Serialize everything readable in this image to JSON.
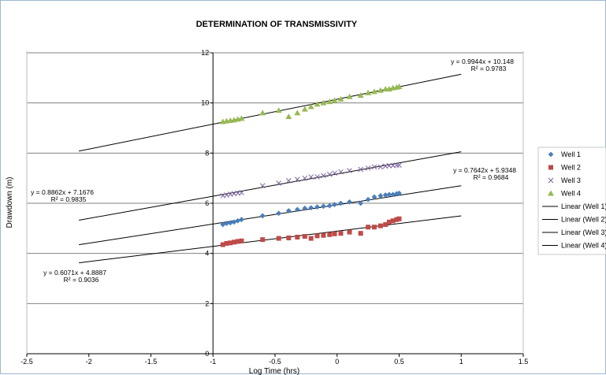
{
  "chart_data": {
    "type": "scatter",
    "title": "DETERMINATION OF TRANSMISSIVITY",
    "xlabel": "Log Time (hrs)",
    "ylabel": "Drawdown (m)",
    "xlim": [
      -2.5,
      1.5
    ],
    "ylim": [
      0,
      12
    ],
    "xticks": [
      "-2.5",
      "-2",
      "-1.5",
      "-1",
      "-0.5",
      "0",
      "0.5",
      "1",
      "1.5"
    ],
    "yticks": [
      "0",
      "2",
      "4",
      "6",
      "8",
      "10",
      "12"
    ],
    "grid": "horizontal",
    "legend_position": "right",
    "series": [
      {
        "name": "Well 1",
        "marker": "diamond",
        "color": "#4a7ebb",
        "x": [
          -0.92,
          -0.89,
          -0.86,
          -0.83,
          -0.8,
          -0.77,
          -0.6,
          -0.47,
          -0.39,
          -0.32,
          -0.26,
          -0.21,
          -0.16,
          -0.11,
          -0.06,
          -0.02,
          0.03,
          0.1,
          0.19,
          0.25,
          0.3,
          0.35,
          0.39,
          0.42,
          0.45,
          0.48,
          0.5
        ],
        "y": [
          5.15,
          5.2,
          5.22,
          5.25,
          5.3,
          5.35,
          5.5,
          5.6,
          5.7,
          5.75,
          5.8,
          5.82,
          5.85,
          5.88,
          5.9,
          5.95,
          6.0,
          6.05,
          6.0,
          6.15,
          6.25,
          6.3,
          6.33,
          6.35,
          6.35,
          6.38,
          6.4
        ]
      },
      {
        "name": "Well 2",
        "marker": "square",
        "color": "#be4b48",
        "x": [
          -0.92,
          -0.89,
          -0.86,
          -0.83,
          -0.8,
          -0.77,
          -0.6,
          -0.47,
          -0.39,
          -0.32,
          -0.26,
          -0.21,
          -0.16,
          -0.11,
          -0.06,
          -0.02,
          0.03,
          0.1,
          0.19,
          0.25,
          0.3,
          0.35,
          0.39,
          0.42,
          0.45,
          0.48,
          0.5
        ],
        "y": [
          4.35,
          4.4,
          4.42,
          4.45,
          4.48,
          4.5,
          4.55,
          4.6,
          4.62,
          4.65,
          4.68,
          4.6,
          4.7,
          4.72,
          4.75,
          4.78,
          4.8,
          4.85,
          4.8,
          5.05,
          5.05,
          5.1,
          5.15,
          5.25,
          5.3,
          5.35,
          5.38
        ]
      },
      {
        "name": "Well 3",
        "marker": "x",
        "color": "#7e64a0",
        "x": [
          -0.92,
          -0.89,
          -0.86,
          -0.83,
          -0.8,
          -0.77,
          -0.6,
          -0.47,
          -0.39,
          -0.32,
          -0.26,
          -0.21,
          -0.16,
          -0.11,
          -0.06,
          -0.02,
          0.03,
          0.1,
          0.19,
          0.25,
          0.3,
          0.35,
          0.39,
          0.42,
          0.45,
          0.48,
          0.5
        ],
        "y": [
          6.3,
          6.33,
          6.36,
          6.38,
          6.4,
          6.42,
          6.7,
          6.8,
          6.9,
          6.95,
          7.0,
          7.05,
          7.05,
          7.1,
          7.15,
          7.2,
          7.25,
          7.3,
          7.35,
          7.4,
          7.45,
          7.45,
          7.48,
          7.5,
          7.5,
          7.52,
          7.52
        ]
      },
      {
        "name": "Well 4",
        "marker": "triangle",
        "color": "#98b954",
        "x": [
          -0.92,
          -0.89,
          -0.86,
          -0.83,
          -0.8,
          -0.77,
          -0.6,
          -0.47,
          -0.39,
          -0.32,
          -0.26,
          -0.21,
          -0.16,
          -0.11,
          -0.06,
          -0.02,
          0.03,
          0.1,
          0.19,
          0.25,
          0.3,
          0.35,
          0.39,
          0.42,
          0.45,
          0.48,
          0.5
        ],
        "y": [
          9.25,
          9.28,
          9.3,
          9.32,
          9.35,
          9.38,
          9.6,
          9.7,
          9.45,
          9.6,
          9.75,
          9.85,
          9.95,
          10.0,
          10.05,
          10.1,
          10.15,
          10.25,
          10.3,
          10.4,
          10.45,
          10.5,
          10.55,
          10.55,
          10.6,
          10.62,
          10.65
        ]
      }
    ],
    "trendlines": [
      {
        "name": "Linear (Well 1)",
        "x_range": [
          -2.08,
          1.0
        ],
        "slope": 0.7642,
        "intercept": 5.9348,
        "equation": "y = 0.7642x + 5.9348",
        "r2": "R² = 0.9684"
      },
      {
        "name": "Linear (Well 2)",
        "x_range": [
          -2.08,
          1.0
        ],
        "slope": 0.6071,
        "intercept": 4.8887,
        "equation": "y = 0.6071x + 4.8887",
        "r2": "R² = 0.9036"
      },
      {
        "name": "Linear (Well 3)",
        "x_range": [
          -2.08,
          1.0
        ],
        "slope": 0.8862,
        "intercept": 7.1676,
        "equation": "y = 0.8862x + 7.1676",
        "r2": "R² = 0.9835"
      },
      {
        "name": "Linear (Well 4)",
        "x_range": [
          -2.08,
          1.0
        ],
        "slope": 0.9944,
        "intercept": 10.148,
        "equation": "y = 0.9944x + 10.148",
        "r2": "R² = 0.9783"
      }
    ],
    "annotations": [
      {
        "series": "Linear (Well 4)",
        "anchor": "upper-right"
      },
      {
        "series": "Linear (Well 1)",
        "anchor": "right"
      },
      {
        "series": "Linear (Well 3)",
        "anchor": "left"
      },
      {
        "series": "Linear (Well 2)",
        "anchor": "lower-left"
      }
    ]
  }
}
